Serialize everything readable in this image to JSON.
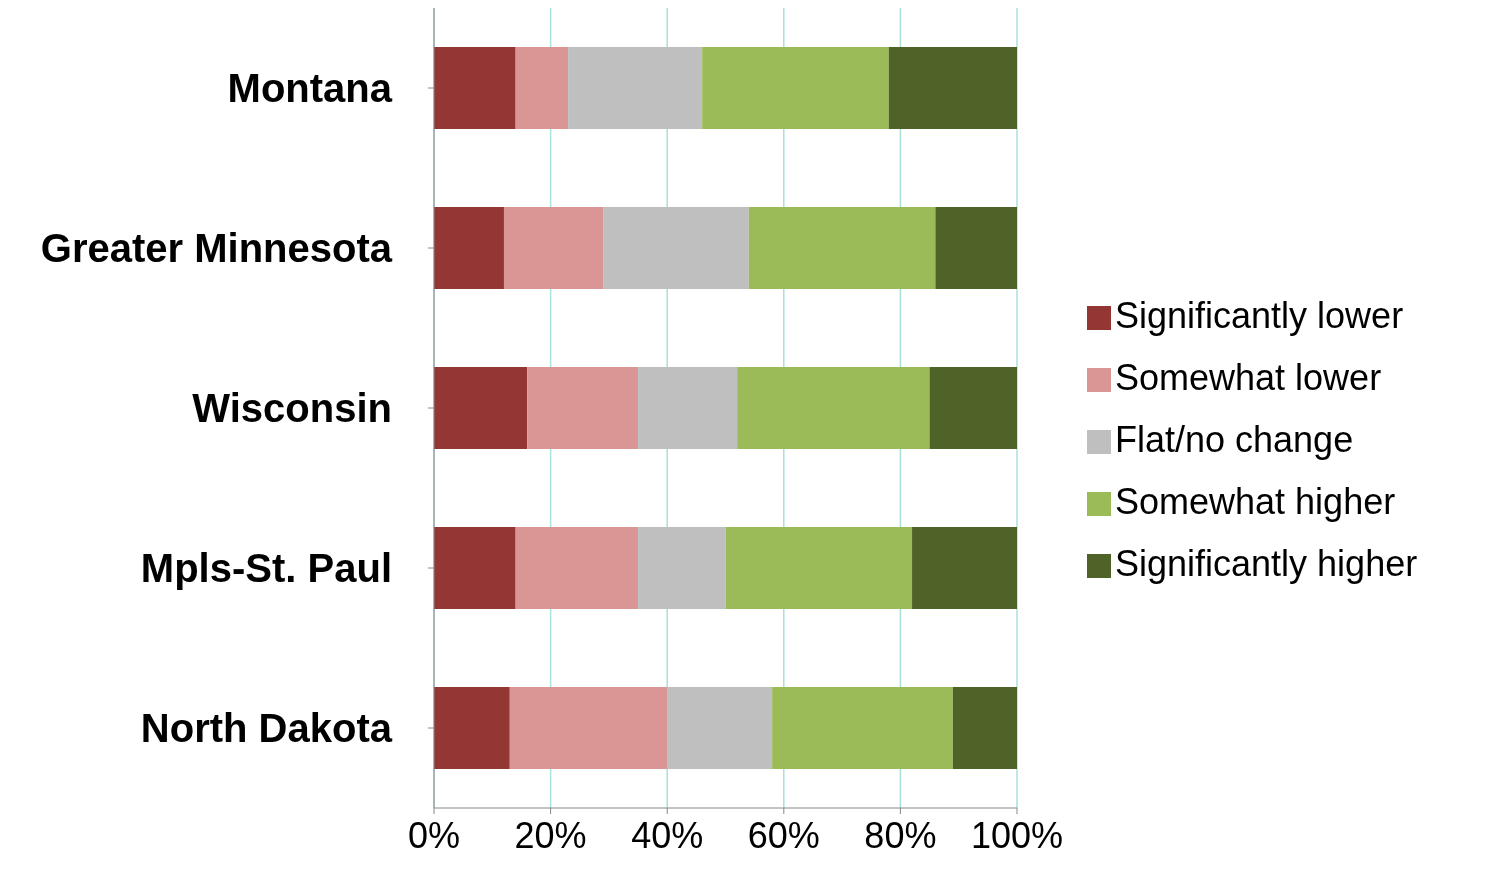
{
  "chart_data": {
    "type": "bar",
    "orientation": "horizontal",
    "stacked": true,
    "categories": [
      "Montana",
      "Greater Minnesota",
      "Wisconsin",
      "Mpls-St. Paul",
      "North Dakota"
    ],
    "series": [
      {
        "name": "Significantly lower",
        "color": "#943634",
        "values": [
          14,
          12,
          16,
          14,
          13
        ]
      },
      {
        "name": "Somewhat lower",
        "color": "#d99694",
        "values": [
          9,
          17,
          19,
          21,
          27
        ]
      },
      {
        "name": "Flat/no change",
        "color": "#bfbfbf",
        "values": [
          23,
          25,
          17,
          15,
          18
        ]
      },
      {
        "name": "Somewhat higher",
        "color": "#9bbb59",
        "values": [
          32,
          32,
          33,
          32,
          31
        ]
      },
      {
        "name": "Significantly higher",
        "color": "#4f6228",
        "values": [
          22,
          14,
          15,
          18,
          11
        ]
      }
    ],
    "xlim": [
      0,
      100
    ],
    "xticks": [
      {
        "value": 0,
        "label": "0%"
      },
      {
        "value": 20,
        "label": "20%"
      },
      {
        "value": 40,
        "label": "40%"
      },
      {
        "value": 60,
        "label": "60%"
      },
      {
        "value": 80,
        "label": "80%"
      },
      {
        "value": 100,
        "label": "100%"
      }
    ],
    "grid": "x",
    "legend": "right"
  }
}
